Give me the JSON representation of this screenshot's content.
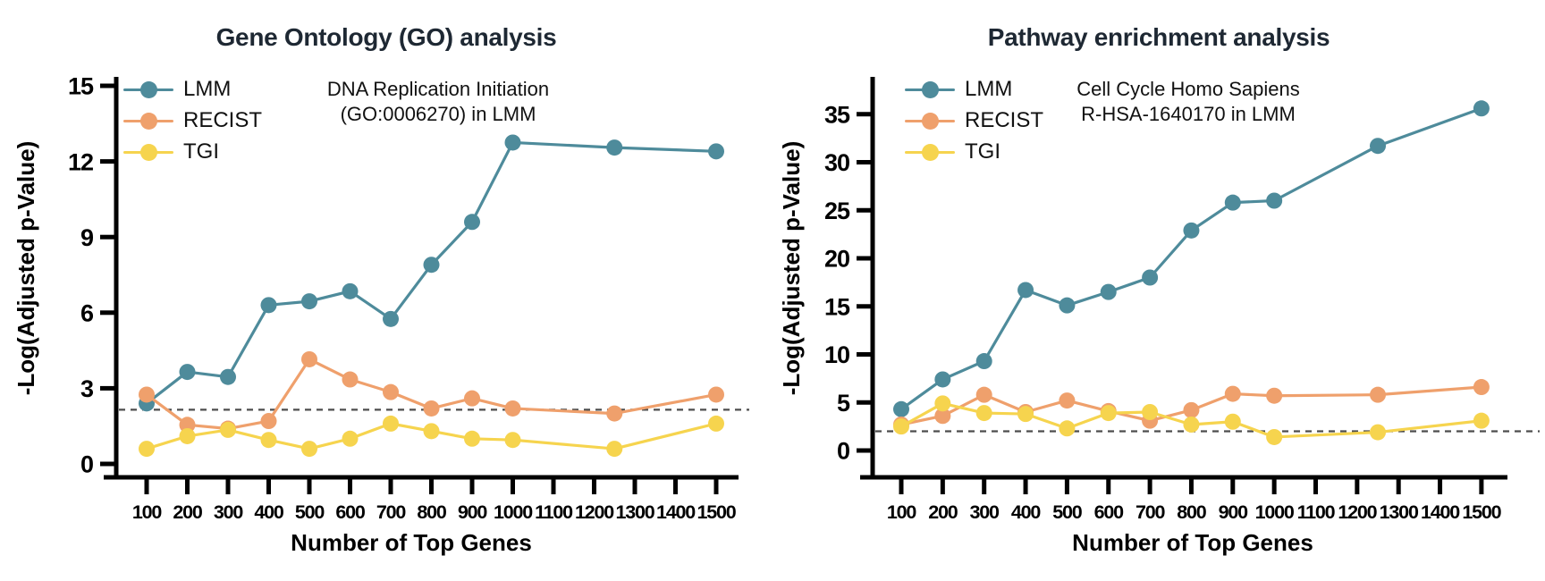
{
  "colors": {
    "background": "#ffffff",
    "axis": "#000000",
    "title_text": "#1e2833",
    "threshold_line": "#4d4d4d",
    "lmm": "#4e8b9b",
    "recist": "#efa06c",
    "tgi": "#f6d44e"
  },
  "chart_data": [
    {
      "type": "line",
      "title": "Gene Ontology (GO) analysis",
      "annotation": [
        "DNA Replication Initiation",
        "(GO:0006270) in LMM"
      ],
      "xlabel": "Number of Top Genes",
      "ylabel": "-Log(Adjusted p-Value)",
      "x": [
        100,
        200,
        300,
        400,
        500,
        600,
        700,
        800,
        900,
        1000,
        1250,
        1500
      ],
      "x_ticks": [
        100,
        200,
        300,
        400,
        500,
        600,
        700,
        800,
        900,
        1000,
        1100,
        1200,
        1300,
        1400,
        1500
      ],
      "y_ticks": [
        0,
        3,
        6,
        9,
        12,
        15
      ],
      "ylim": [
        0,
        15.5
      ],
      "grid": false,
      "legend_position": "top-left",
      "threshold": 2.15,
      "series": [
        {
          "name": "LMM",
          "color": "#4e8b9b",
          "values": [
            2.4,
            3.65,
            3.45,
            6.3,
            6.45,
            6.85,
            5.75,
            7.9,
            9.6,
            12.75,
            12.55,
            12.4
          ]
        },
        {
          "name": "RECIST",
          "color": "#efa06c",
          "values": [
            2.75,
            1.55,
            1.4,
            1.7,
            4.15,
            3.35,
            2.85,
            2.2,
            2.6,
            2.2,
            2.0,
            2.75
          ]
        },
        {
          "name": "TGI",
          "color": "#f6d44e",
          "values": [
            0.6,
            1.1,
            1.35,
            0.95,
            0.6,
            1.0,
            1.6,
            1.3,
            1.0,
            0.95,
            0.6,
            1.6
          ]
        }
      ]
    },
    {
      "type": "line",
      "title": "Pathway enrichment analysis",
      "annotation": [
        "Cell Cycle Homo Sapiens",
        "R-HSA-1640170 in LMM"
      ],
      "xlabel": "Number of Top Genes",
      "ylabel": "-Log(Adjusted p-Value)",
      "x": [
        100,
        200,
        300,
        400,
        500,
        600,
        700,
        800,
        900,
        1000,
        1250,
        1500
      ],
      "x_ticks": [
        100,
        200,
        300,
        400,
        500,
        600,
        700,
        800,
        900,
        1000,
        1100,
        1200,
        1300,
        1400,
        1500
      ],
      "y_ticks": [
        0,
        5,
        10,
        15,
        20,
        25,
        30,
        35
      ],
      "ylim": [
        0,
        37
      ],
      "grid": false,
      "legend_position": "top-left",
      "threshold": 2.0,
      "series": [
        {
          "name": "LMM",
          "color": "#4e8b9b",
          "values": [
            4.3,
            7.4,
            9.3,
            16.7,
            15.1,
            16.5,
            18.0,
            22.9,
            25.8,
            26.0,
            31.7,
            35.6
          ]
        },
        {
          "name": "RECIST",
          "color": "#efa06c",
          "values": [
            2.7,
            3.6,
            5.8,
            4.0,
            5.2,
            4.1,
            3.1,
            4.2,
            5.9,
            5.7,
            5.8,
            6.6
          ]
        },
        {
          "name": "TGI",
          "color": "#f6d44e",
          "values": [
            2.5,
            4.9,
            3.9,
            3.8,
            2.3,
            3.9,
            4.0,
            2.7,
            3.0,
            1.4,
            1.9,
            3.1
          ]
        }
      ]
    }
  ]
}
